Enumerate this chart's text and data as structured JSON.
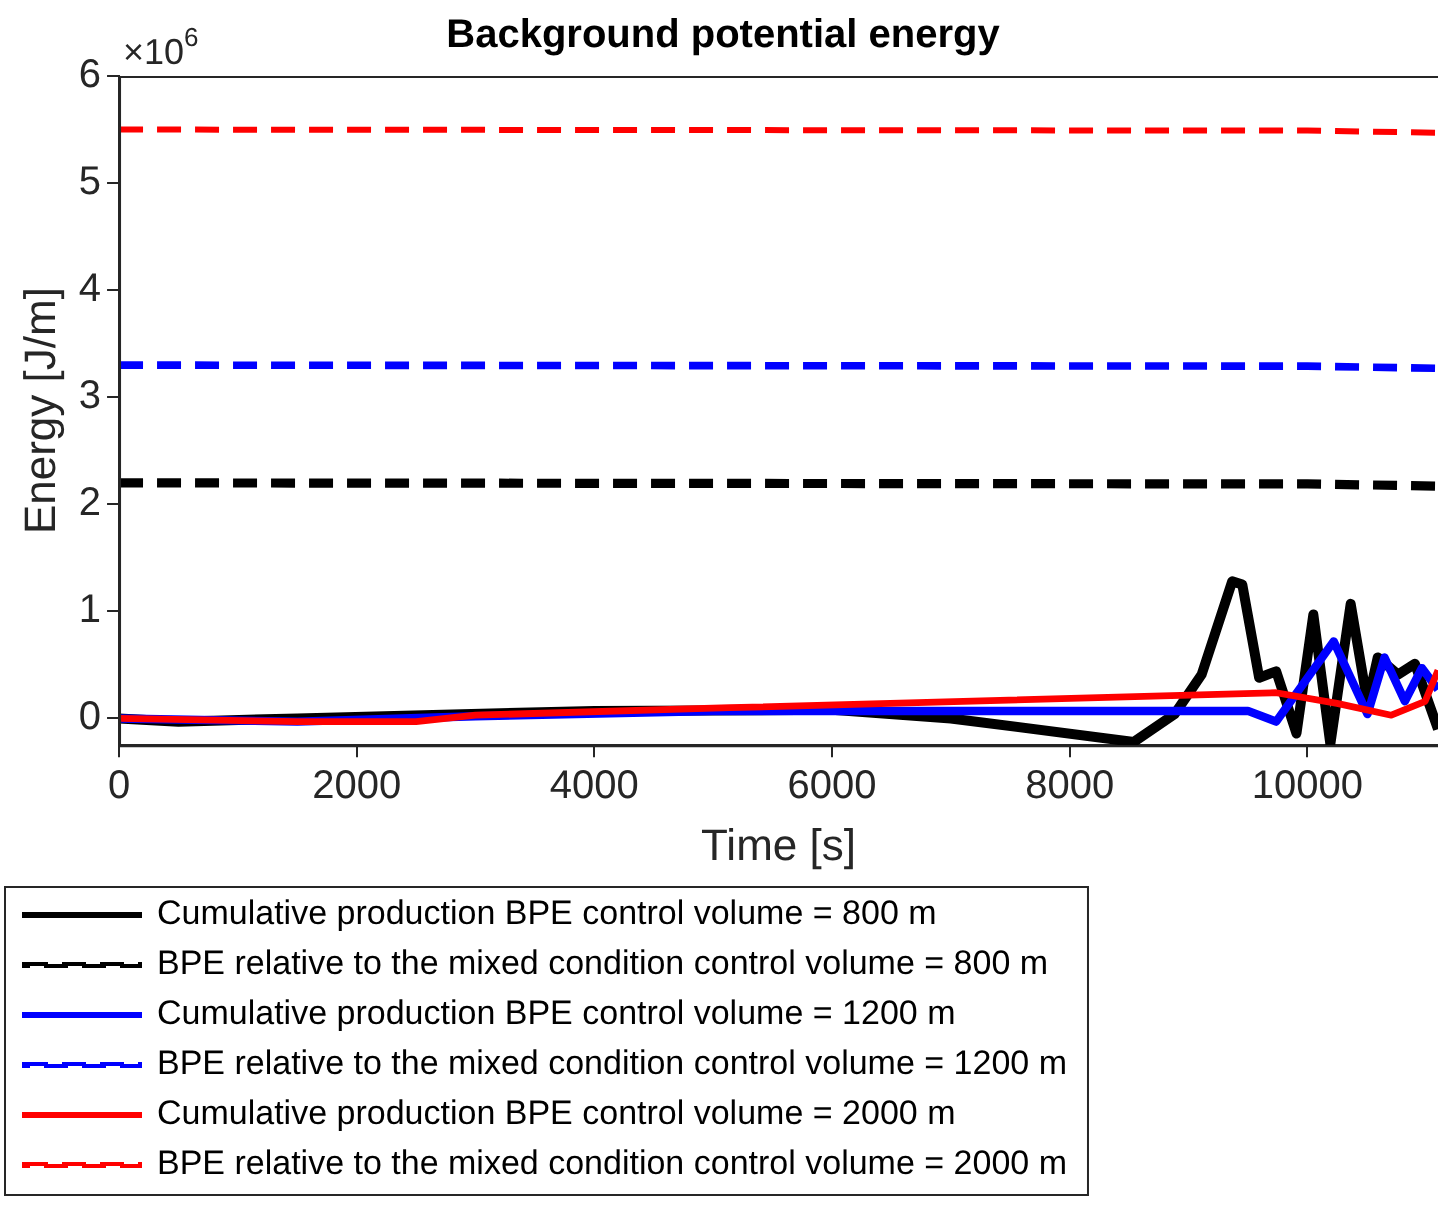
{
  "chart_data": {
    "type": "line",
    "title": "Background potential energy",
    "xlabel": "Time [s]",
    "ylabel": "Energy [J/m]",
    "annotations": [
      "×10$^{6}$"
    ],
    "xlim": [
      0,
      11100
    ],
    "xticks": [
      0,
      2000,
      4000,
      6000,
      8000,
      10000
    ],
    "ylim": [
      -0.25,
      6
    ],
    "yticks": [
      0,
      1,
      2,
      3,
      4,
      5,
      6
    ],
    "grid": false,
    "legend": "bottom",
    "marker": "none",
    "series": [
      {
        "name": "Cumulative production BPE control volume = 800 m",
        "color": "#000000",
        "line_style": "solid",
        "x": [
          0,
          500,
          1500,
          4000,
          6000,
          7000,
          8540,
          8883,
          9111,
          9368,
          9453,
          9595,
          9738,
          9909,
          10051,
          10194,
          10365,
          10507,
          10593,
          10764,
          10906,
          11100
        ],
        "values": [
          0,
          -0.03,
          0,
          0.07,
          0.08,
          0,
          -0.22,
          0.04,
          0.41,
          1.28,
          1.25,
          0.38,
          0.44,
          -0.14,
          0.97,
          -0.24,
          1.07,
          0.14,
          0.57,
          0.41,
          0.51,
          -0.1
        ]
      },
      {
        "name": "BPE relative to the mixed condition control volume = 800 m",
        "color": "#000000",
        "line_style": "dashed",
        "x": [
          0,
          10000,
          11100
        ],
        "values": [
          2.2,
          2.19,
          2.17
        ]
      },
      {
        "name": "Cumulative production BPE control volume = 1200 m",
        "color": "#0000ff",
        "line_style": "solid",
        "x": [
          0,
          1500,
          3000,
          5000,
          9500,
          9738,
          10222,
          10507,
          10650,
          10821,
          10964,
          11100
        ],
        "values": [
          0,
          -0.03,
          0.02,
          0.07,
          0.07,
          -0.03,
          0.72,
          0.04,
          0.57,
          0.16,
          0.47,
          0.27
        ]
      },
      {
        "name": "BPE relative to the mixed condition control volume = 1200 m",
        "color": "#0000ff",
        "line_style": "dashed",
        "x": [
          0,
          10000,
          11100
        ],
        "values": [
          3.3,
          3.29,
          3.27
        ]
      },
      {
        "name": "Cumulative production BPE control volume = 2000 m",
        "color": "#ff0000",
        "line_style": "solid",
        "x": [
          0,
          1500,
          2500,
          3000,
          5140,
          9738,
          10250,
          10707,
          10992,
          11100
        ],
        "values": [
          0,
          -0.03,
          -0.03,
          0.03,
          0.1,
          0.24,
          0.14,
          0.03,
          0.16,
          0.45
        ]
      },
      {
        "name": "BPE relative to the mixed condition control volume = 2000 m",
        "color": "#ff0000",
        "line_style": "dashed",
        "x": [
          0,
          10000,
          11100
        ],
        "values": [
          5.5,
          5.49,
          5.47
        ]
      }
    ]
  }
}
